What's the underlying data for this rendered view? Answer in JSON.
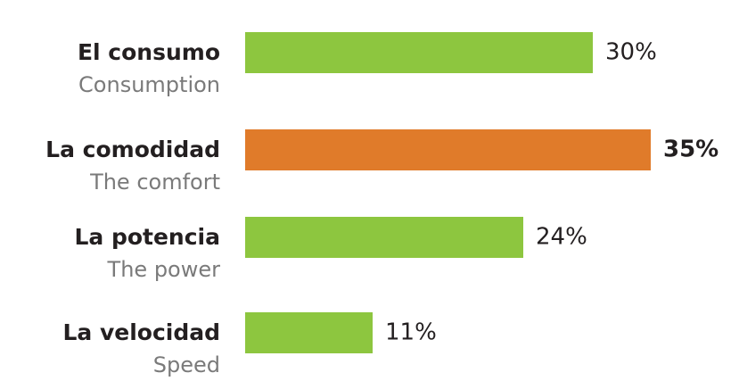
{
  "chart_data": {
    "type": "bar",
    "orientation": "horizontal",
    "categories": [
      "El consumo",
      "La comodidad",
      "La potencia",
      "La velocidad"
    ],
    "categories_en": [
      "Consumption",
      "The comfort",
      "The power",
      "Speed"
    ],
    "values": [
      30,
      35,
      24,
      11
    ],
    "value_labels": [
      "30%",
      "35%",
      "24%",
      "11%"
    ],
    "colors": [
      "#8dc63f",
      "#e07b2a",
      "#8dc63f",
      "#8dc63f"
    ],
    "highlight": "La comodidad"
  }
}
